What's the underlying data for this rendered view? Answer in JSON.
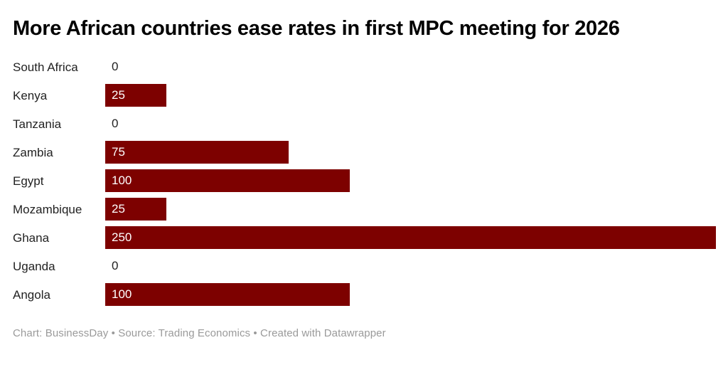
{
  "title": "More African countries ease rates in first MPC meeting for 2026",
  "footer": "Chart: BusinessDay • Source: Trading Economics • Created with Datawrapper",
  "colors": {
    "bar": "#7d0100",
    "title": "#000000",
    "category_label": "#222222",
    "value_inside_bar": "#ffffff",
    "footer": "#9a9a9a",
    "background": "#ffffff"
  },
  "chart_data": {
    "type": "bar",
    "orientation": "horizontal",
    "title": "More African countries ease rates in first MPC meeting for 2026",
    "categories": [
      "South Africa",
      "Kenya",
      "Tanzania",
      "Zambia",
      "Egypt",
      "Mozambique",
      "Ghana",
      "Uganda",
      "Angola"
    ],
    "values": [
      0,
      25,
      0,
      75,
      100,
      25,
      250,
      0,
      100
    ],
    "xlabel": "",
    "ylabel": "",
    "xlim": [
      0,
      250
    ],
    "grid": false,
    "legend": false,
    "value_labels": "inside-left",
    "bar_color": "#7d0100"
  }
}
